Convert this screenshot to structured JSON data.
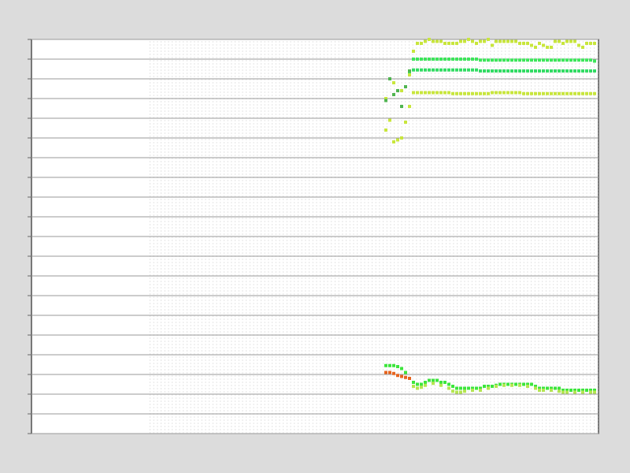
{
  "chart_data": {
    "type": "scatter",
    "xlim": [
      0,
      144
    ],
    "ylim": [
      0,
      20
    ],
    "yticks": [
      0,
      1,
      2,
      3,
      4,
      5,
      6,
      7,
      8,
      9,
      10,
      11,
      12,
      13,
      14,
      15,
      16,
      17,
      18,
      19,
      20
    ],
    "grid": true,
    "series": [
      {
        "color": "#c8e63c",
        "x": [
          90,
          91,
          92,
          93,
          94,
          95,
          96,
          97,
          98,
          99,
          100,
          101,
          102,
          103,
          104,
          105,
          106,
          107,
          108,
          109,
          110,
          111,
          112,
          113,
          114,
          115,
          116,
          117,
          118,
          119,
          120,
          121,
          122,
          123,
          124,
          125,
          126,
          127,
          128,
          129,
          130,
          131,
          132,
          133,
          134,
          135,
          136,
          137,
          138,
          139,
          140,
          141,
          142,
          143
        ],
        "values": [
          15.4,
          15.9,
          14.8,
          14.9,
          15.0,
          15.8,
          16.6,
          19.4,
          19.8,
          19.8,
          19.9,
          20.0,
          19.9,
          19.9,
          19.9,
          19.8,
          19.8,
          19.8,
          19.8,
          19.9,
          19.9,
          20.0,
          19.9,
          19.8,
          19.9,
          19.9,
          20.0,
          19.7,
          19.9,
          19.9,
          19.9,
          19.9,
          19.9,
          19.9,
          19.8,
          19.8,
          19.8,
          19.7,
          19.6,
          19.8,
          19.7,
          19.6,
          19.6,
          19.9,
          19.9,
          19.8,
          19.9,
          19.9,
          19.9,
          19.7,
          19.6,
          19.8,
          19.8,
          19.8
        ]
      },
      {
        "color": "#3ce65a",
        "x": [
          96,
          97,
          98,
          99,
          100,
          101,
          102,
          103,
          104,
          105,
          106,
          107,
          108,
          109,
          110,
          111,
          112,
          113,
          114,
          115,
          116,
          117,
          118,
          119,
          120,
          121,
          122,
          123,
          124,
          125,
          126,
          127,
          128,
          129,
          130,
          131,
          132,
          133,
          134,
          135,
          136,
          137,
          138,
          139,
          140,
          141,
          142,
          143
        ],
        "values": [
          18.3,
          19.0,
          19.0,
          19.0,
          19.0,
          19.0,
          19.0,
          19.0,
          19.0,
          19.0,
          19.0,
          19.0,
          19.0,
          19.0,
          19.0,
          19.0,
          19.0,
          19.0,
          18.95,
          18.95,
          18.95,
          18.95,
          18.95,
          18.95,
          18.95,
          18.95,
          18.95,
          18.95,
          18.95,
          18.95,
          18.95,
          18.95,
          18.95,
          18.95,
          18.95,
          18.95,
          18.95,
          18.95,
          18.95,
          18.95,
          18.95,
          18.95,
          18.95,
          18.95,
          18.95,
          18.95,
          18.95,
          18.9
        ]
      },
      {
        "color": "#32dc64",
        "x": [
          97,
          98,
          99,
          100,
          101,
          102,
          103,
          104,
          105,
          106,
          107,
          108,
          109,
          110,
          111,
          112,
          113,
          114,
          115,
          116,
          117,
          118,
          119,
          120,
          121,
          122,
          123,
          124,
          125,
          126,
          127,
          128,
          129,
          130,
          131,
          132,
          133,
          134,
          135,
          136,
          137,
          138,
          139,
          140,
          141,
          142,
          143
        ],
        "values": [
          18.45,
          18.45,
          18.45,
          18.45,
          18.45,
          18.45,
          18.45,
          18.45,
          18.45,
          18.45,
          18.45,
          18.45,
          18.45,
          18.45,
          18.45,
          18.45,
          18.45,
          18.4,
          18.4,
          18.4,
          18.4,
          18.4,
          18.4,
          18.4,
          18.4,
          18.4,
          18.4,
          18.4,
          18.4,
          18.4,
          18.4,
          18.4,
          18.4,
          18.4,
          18.4,
          18.4,
          18.4,
          18.4,
          18.4,
          18.4,
          18.4,
          18.4,
          18.4,
          18.4,
          18.4,
          18.4,
          18.4
        ]
      },
      {
        "color": "#c8e63c",
        "x": [
          90,
          92,
          94,
          96,
          97,
          98,
          99,
          100,
          101,
          102,
          103,
          104,
          105,
          106,
          107,
          108,
          109,
          110,
          111,
          112,
          113,
          114,
          115,
          116,
          117,
          118,
          119,
          120,
          121,
          122,
          123,
          124,
          125,
          126,
          127,
          128,
          129,
          130,
          131,
          132,
          133,
          134,
          135,
          136,
          137,
          138,
          139,
          140,
          141,
          142,
          143
        ],
        "values": [
          17.0,
          17.8,
          17.4,
          18.2,
          17.3,
          17.3,
          17.3,
          17.3,
          17.3,
          17.3,
          17.3,
          17.3,
          17.3,
          17.3,
          17.25,
          17.25,
          17.25,
          17.25,
          17.25,
          17.25,
          17.25,
          17.25,
          17.25,
          17.25,
          17.3,
          17.3,
          17.3,
          17.3,
          17.3,
          17.3,
          17.3,
          17.3,
          17.25,
          17.25,
          17.25,
          17.25,
          17.25,
          17.25,
          17.25,
          17.25,
          17.25,
          17.25,
          17.25,
          17.25,
          17.25,
          17.25,
          17.25,
          17.25,
          17.25,
          17.25,
          17.25
        ]
      },
      {
        "color": "#50b450",
        "x": [
          90,
          91,
          92,
          93,
          94,
          95,
          96
        ],
        "values": [
          16.9,
          18.0,
          17.2,
          17.4,
          16.6,
          17.6,
          18.4
        ]
      },
      {
        "color": "#3ce63c",
        "x": [
          90,
          91,
          92,
          93,
          94,
          95,
          96,
          97,
          98,
          99,
          100,
          101,
          102,
          103,
          104,
          105,
          106,
          107,
          108,
          109,
          110,
          111,
          112,
          113,
          114,
          115,
          116,
          117,
          118,
          119,
          120,
          121,
          122,
          123,
          124,
          125,
          126,
          127,
          128,
          129,
          130,
          131,
          132,
          133,
          134,
          135,
          136,
          137,
          138,
          139,
          140,
          141,
          142,
          143
        ],
        "values": [
          3.45,
          3.45,
          3.45,
          3.4,
          3.3,
          3.1,
          2.8,
          2.6,
          2.5,
          2.5,
          2.6,
          2.7,
          2.7,
          2.7,
          2.6,
          2.6,
          2.5,
          2.4,
          2.3,
          2.3,
          2.3,
          2.3,
          2.3,
          2.3,
          2.3,
          2.4,
          2.4,
          2.4,
          2.45,
          2.5,
          2.5,
          2.5,
          2.5,
          2.5,
          2.5,
          2.5,
          2.5,
          2.5,
          2.4,
          2.3,
          2.3,
          2.3,
          2.3,
          2.3,
          2.3,
          2.2,
          2.2,
          2.2,
          2.2,
          2.2,
          2.2,
          2.2,
          2.2,
          2.2
        ]
      },
      {
        "color": "#b4e650",
        "x": [
          97,
          98,
          99,
          100,
          102,
          104,
          106,
          107,
          108,
          109,
          110,
          112,
          114,
          116,
          118,
          120,
          122,
          124,
          126,
          128,
          129,
          130,
          132,
          134,
          135,
          136,
          138,
          140,
          142,
          143
        ],
        "values": [
          2.4,
          2.3,
          2.35,
          2.45,
          2.55,
          2.45,
          2.3,
          2.15,
          2.1,
          2.1,
          2.15,
          2.2,
          2.2,
          2.3,
          2.4,
          2.45,
          2.45,
          2.45,
          2.4,
          2.3,
          2.2,
          2.2,
          2.2,
          2.15,
          2.1,
          2.1,
          2.1,
          2.1,
          2.1,
          2.1
        ]
      },
      {
        "color": "#e6641e",
        "x": [
          90,
          91,
          92,
          93,
          94,
          95,
          96
        ],
        "values": [
          3.1,
          3.1,
          3.05,
          2.95,
          2.9,
          2.85,
          2.8
        ]
      }
    ]
  }
}
